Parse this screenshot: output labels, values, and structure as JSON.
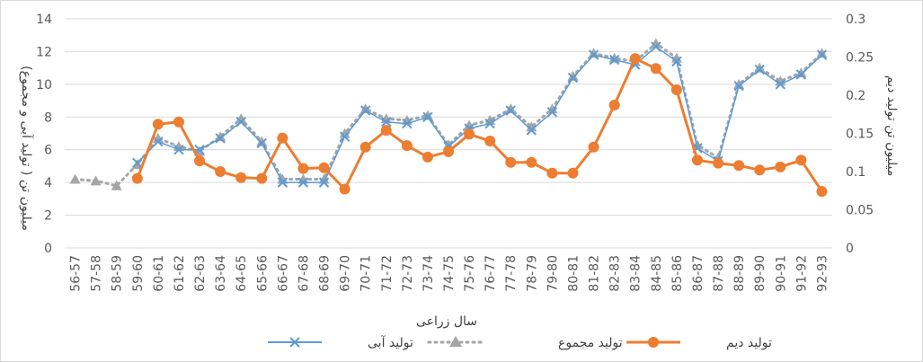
{
  "chart_data": {
    "type": "line",
    "x_title": "سال زراعی",
    "y_left_title": "میلیون تن ( تولید آبی و مجموع)",
    "y_right_title": "میلیون تن تولید دیم",
    "y_left_range": [
      0,
      14
    ],
    "y_left_ticks": [
      "0",
      "2",
      "4",
      "6",
      "8",
      "10",
      "12",
      "14"
    ],
    "y_right_range": [
      0,
      0.3
    ],
    "y_right_ticks": [
      "0",
      "0.05",
      "0.1",
      "0.15",
      "0.2",
      "0.25",
      "0.3"
    ],
    "grid": true,
    "legend_position": "bottom",
    "categories": [
      "56-57",
      "57-58",
      "58-59",
      "59-60",
      "60-61",
      "61-62",
      "62-63",
      "63-64",
      "64-65",
      "65-66",
      "66-67",
      "67-68",
      "68-69",
      "69-70",
      "70-71",
      "71-72",
      "72-73",
      "73-74",
      "74-75",
      "75-76",
      "76-77",
      "77-78",
      "78-79",
      "79-80",
      "80-81",
      "81-82",
      "82-83",
      "83-84",
      "84-85",
      "85-86",
      "86-87",
      "87-88",
      "88-89",
      "89-90",
      "90-91",
      "91-92",
      "92-93"
    ],
    "series": [
      {
        "name": "تولید آبی",
        "axis": "left",
        "color": "#5b9bd5",
        "marker": "x",
        "values": [
          null,
          null,
          null,
          5.2,
          6.5,
          6.0,
          6.0,
          6.7,
          7.7,
          6.4,
          4.0,
          4.0,
          4.0,
          6.8,
          8.4,
          7.7,
          7.6,
          8.0,
          6.2,
          7.3,
          7.6,
          8.4,
          7.2,
          8.3,
          10.4,
          11.8,
          11.5,
          11.2,
          12.3,
          11.4,
          6.1,
          5.3,
          9.9,
          10.9,
          10.0,
          10.6,
          11.8
        ]
      },
      {
        "name": "تولید مجموع",
        "axis": "left",
        "color": "#a5a5a5",
        "marker": "triangle",
        "values": [
          4.2,
          4.1,
          3.8,
          5.1,
          6.7,
          6.2,
          5.9,
          6.8,
          7.9,
          6.5,
          4.2,
          4.2,
          4.2,
          7.0,
          8.5,
          7.9,
          7.8,
          8.1,
          6.3,
          7.5,
          7.8,
          8.5,
          7.4,
          8.5,
          10.5,
          11.9,
          11.6,
          11.4,
          12.5,
          11.6,
          6.3,
          5.5,
          10.0,
          11.0,
          10.2,
          10.7,
          11.9
        ]
      },
      {
        "name": "تولید دیم",
        "axis": "right",
        "color": "#ed7d31",
        "marker": "circle",
        "values": [
          null,
          null,
          null,
          0.091,
          0.162,
          0.165,
          0.114,
          0.1,
          0.092,
          0.091,
          0.144,
          0.104,
          0.105,
          0.077,
          0.132,
          0.154,
          0.134,
          0.119,
          0.126,
          0.149,
          0.14,
          0.112,
          0.112,
          0.098,
          0.098,
          0.132,
          0.187,
          0.248,
          0.235,
          0.207,
          0.115,
          0.111,
          0.108,
          0.102,
          0.106,
          0.115,
          0.074
        ]
      }
    ]
  }
}
